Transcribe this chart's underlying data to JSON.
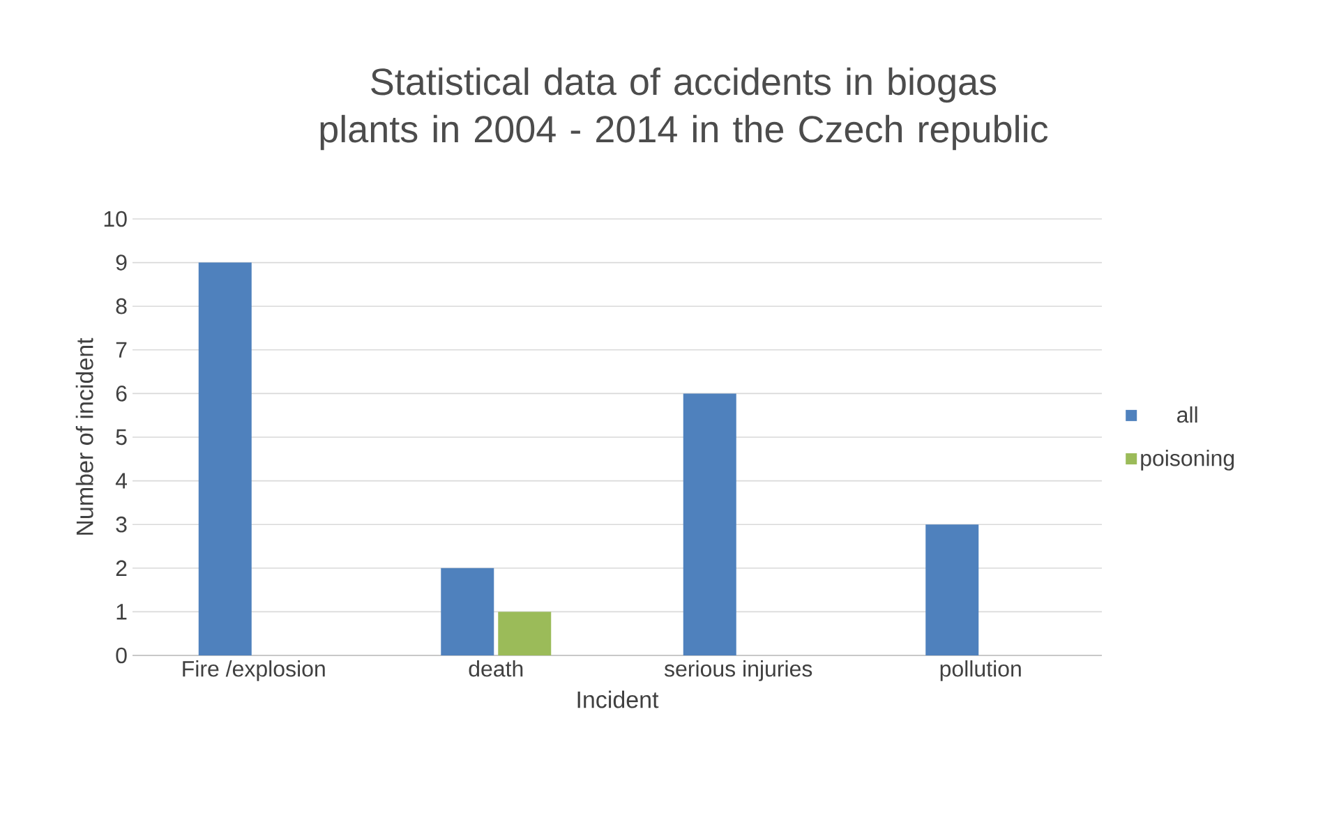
{
  "chart_data": {
    "type": "bar",
    "title": "Statistical data of accidents in biogas plants in 2004 - 2014 in the Czech republic",
    "xlabel": "Incident",
    "ylabel": "Number of incident",
    "categories": [
      "Fire /explosion",
      "death",
      "serious injuries",
      "pollution"
    ],
    "series": [
      {
        "name": "all",
        "color": "#4f81bd",
        "values": [
          9,
          2,
          6,
          3
        ]
      },
      {
        "name": "poisoning",
        "color": "#9bbb59",
        "values": [
          null,
          1,
          null,
          null
        ]
      }
    ],
    "ylim": [
      0,
      10
    ],
    "yticks": [
      0,
      1,
      2,
      3,
      4,
      5,
      6,
      7,
      8,
      9,
      10
    ],
    "grid": "y",
    "legend": "right"
  }
}
